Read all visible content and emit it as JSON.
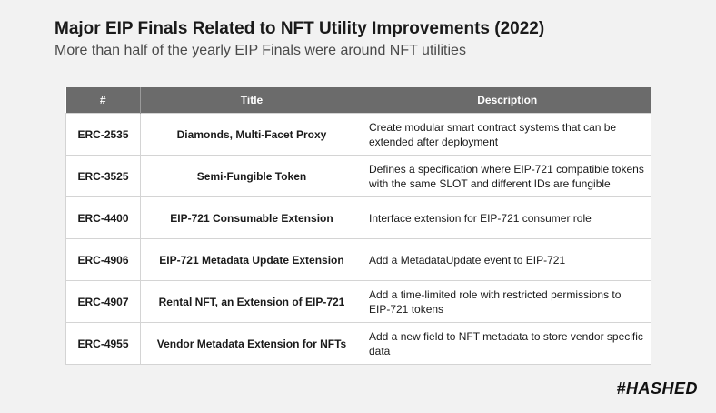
{
  "header": {
    "title": "Major EIP Finals Related to NFT Utility Improvements (2022)",
    "subtitle": "More than half of the yearly EIP Finals were around NFT utilities"
  },
  "table": {
    "columns": [
      "#",
      "Title",
      "Description"
    ],
    "rows": [
      {
        "num": "ERC-2535",
        "title": "Diamonds, Multi-Facet Proxy",
        "description": "Create modular smart contract systems that can be extended after deployment"
      },
      {
        "num": "ERC-3525",
        "title": "Semi-Fungible Token",
        "description": "Defines a specification where EIP-721 compatible tokens with the same SLOT and different IDs are fungible"
      },
      {
        "num": "ERC-4400",
        "title": "EIP-721 Consumable Extension",
        "description": "Interface extension for EIP-721 consumer role"
      },
      {
        "num": "ERC-4906",
        "title": "EIP-721 Metadata Update Extension",
        "description": "Add a MetadataUpdate event to EIP-721"
      },
      {
        "num": "ERC-4907",
        "title": "Rental NFT, an Extension of EIP-721",
        "description": "Add a time-limited role with restricted permissions to EIP-721 tokens"
      },
      {
        "num": "ERC-4955",
        "title": "Vendor Metadata Extension for NFTs",
        "description": "Add a new field to NFT metadata to store vendor specific data"
      }
    ]
  },
  "logo": {
    "text": "#HASHED"
  }
}
